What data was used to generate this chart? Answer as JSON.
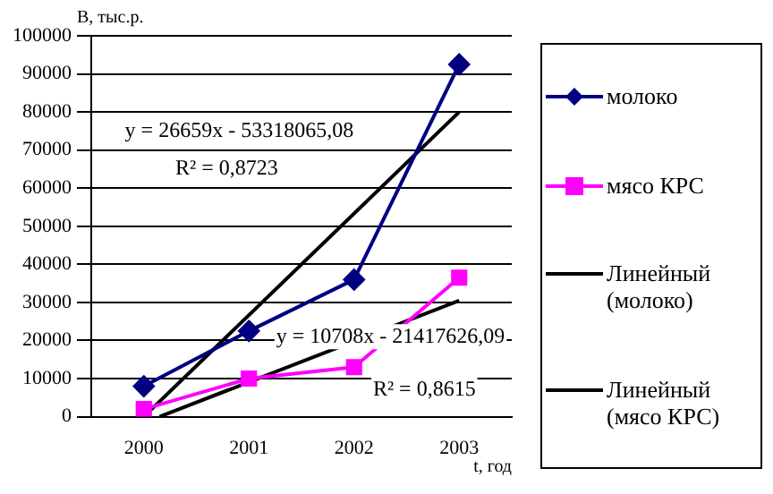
{
  "chart_data": {
    "type": "line",
    "xlabel": "t, год",
    "ylabel": "В, тыс.р.",
    "x": [
      2000,
      2001,
      2002,
      2003
    ],
    "xlim": [
      1999.5,
      2003.5
    ],
    "xticks": [
      2000,
      2001,
      2002,
      2003
    ],
    "ylim": [
      0,
      100000
    ],
    "yticks": [
      0,
      10000,
      20000,
      30000,
      40000,
      50000,
      60000,
      70000,
      80000,
      90000,
      100000
    ],
    "grid": "y",
    "legend": "right",
    "series": [
      {
        "name": "молоко",
        "color": "#000080",
        "marker": "diamond",
        "values": [
          8000,
          22500,
          36000,
          92500
        ]
      },
      {
        "name": "мясо КРС",
        "color": "#ff00ff",
        "marker": "square",
        "values": [
          2000,
          10000,
          13000,
          36500
        ]
      },
      {
        "name": "Линейный (молоко)",
        "color": "#000000",
        "marker": "none",
        "x": [
          2000,
          2003
        ],
        "values": [
          0,
          80000
        ]
      },
      {
        "name": "Линейный (мясо КРС)",
        "color": "#000000",
        "marker": "none",
        "x": [
          2000.15,
          2003
        ],
        "values": [
          0,
          30500
        ]
      }
    ],
    "annotations": [
      "y = 26659x - 53318065,08",
      "R² = 0,8723",
      "y = 10708x - 21417626,09",
      "R² = 0,8615"
    ]
  }
}
